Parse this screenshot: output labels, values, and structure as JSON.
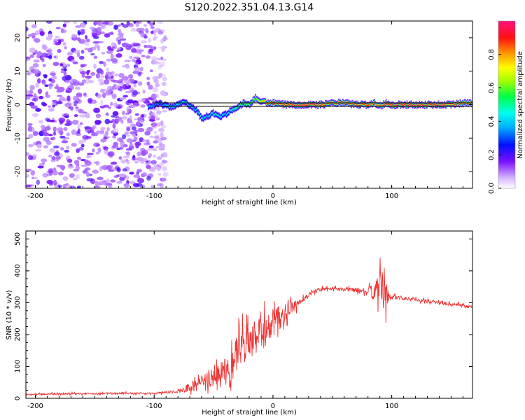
{
  "title": "S120.2022.351.04.13.G14",
  "chart_data": [
    {
      "type": "heatmap",
      "xlabel": "Height of straight line (km)",
      "ylabel": "Frequency (Hz)",
      "xlim": [
        -208,
        168
      ],
      "ylim": [
        -25,
        25
      ],
      "xticks": [
        -200,
        -100,
        0,
        100
      ],
      "yticks": [
        -20,
        -10,
        0,
        10,
        20
      ],
      "colorbar": {
        "label": "Normalized spectral amplitude",
        "range": [
          0,
          1
        ],
        "ticks": [
          "0.0",
          "0.2",
          "0.4",
          "0.6",
          "0.8"
        ],
        "colormap": "rainbow"
      },
      "noise_region": {
        "x_start": -208,
        "x_end": -90,
        "level": 0.15
      },
      "reference_line": {
        "frequency": 0
      },
      "ridge": {
        "x": [
          -105,
          -95,
          -85,
          -75,
          -65,
          -60,
          -55,
          -50,
          -45,
          -40,
          -35,
          -30,
          -25,
          -20,
          -15,
          -10,
          -5,
          0,
          10,
          20,
          30,
          40,
          50,
          60,
          70,
          80,
          85,
          90,
          95,
          100,
          110,
          120,
          130,
          140,
          150,
          160,
          168
        ],
        "freq": [
          -0.5,
          0.2,
          -0.8,
          1.0,
          -1.5,
          -4.0,
          -3.5,
          -2.5,
          -3.5,
          -3.0,
          -1.5,
          -1.0,
          0.5,
          0.0,
          2.0,
          1.0,
          0.5,
          0.5,
          0.0,
          0.0,
          0.0,
          0.0,
          0.5,
          0.5,
          0.0,
          0.0,
          0.5,
          -0.5,
          0.5,
          0.0,
          0.0,
          0.0,
          0.0,
          0.0,
          0.0,
          0.5,
          0.5
        ],
        "amp": [
          0.4,
          0.35,
          0.45,
          0.45,
          0.4,
          0.45,
          0.4,
          0.5,
          0.45,
          0.4,
          0.5,
          0.55,
          0.6,
          0.6,
          0.65,
          0.75,
          0.85,
          0.9,
          0.9,
          0.95,
          0.95,
          0.9,
          0.85,
          0.85,
          0.9,
          0.9,
          0.8,
          0.85,
          0.9,
          0.95,
          0.95,
          0.95,
          0.95,
          0.95,
          0.9,
          0.85,
          0.85
        ]
      }
    },
    {
      "type": "line",
      "xlabel": "Height of straight line (km)",
      "ylabel": "SNR (10 * v/v)",
      "xlim": [
        -208,
        168
      ],
      "ylim": [
        0,
        525
      ],
      "xticks": [
        -200,
        -100,
        0,
        100
      ],
      "yticks": [
        0,
        100,
        200,
        300,
        400,
        500
      ],
      "color": "#ee3333",
      "series": [
        {
          "x": [
            -208,
            -180,
            -150,
            -120,
            -100,
            -85,
            -75,
            -70,
            -65,
            -60,
            -55,
            -50,
            -45,
            -40,
            -35,
            -30,
            -25,
            -20,
            -15,
            -10,
            -5,
            0,
            5,
            10,
            15,
            20,
            25,
            30,
            35,
            40,
            45,
            50,
            55,
            60,
            70,
            80,
            85,
            90,
            93,
            95,
            96,
            98,
            100,
            110,
            120,
            130,
            140,
            150,
            160,
            168
          ],
          "y": [
            12,
            14,
            15,
            16,
            15,
            20,
            25,
            35,
            40,
            50,
            60,
            55,
            80,
            100,
            120,
            140,
            160,
            170,
            190,
            200,
            215,
            230,
            250,
            265,
            280,
            295,
            310,
            325,
            335,
            342,
            345,
            345,
            343,
            342,
            340,
            335,
            335,
            345,
            360,
            330,
            320,
            315,
            318,
            315,
            310,
            305,
            300,
            295,
            290,
            285
          ],
          "spread": [
            4,
            5,
            5,
            5,
            5,
            8,
            15,
            25,
            40,
            40,
            45,
            50,
            70,
            90,
            100,
            110,
            110,
            110,
            110,
            110,
            100,
            110,
            80,
            60,
            40,
            30,
            20,
            15,
            12,
            12,
            10,
            10,
            10,
            12,
            15,
            20,
            60,
            90,
            180,
            150,
            60,
            25,
            15,
            12,
            10,
            10,
            10,
            10,
            10,
            10
          ]
        }
      ]
    }
  ]
}
